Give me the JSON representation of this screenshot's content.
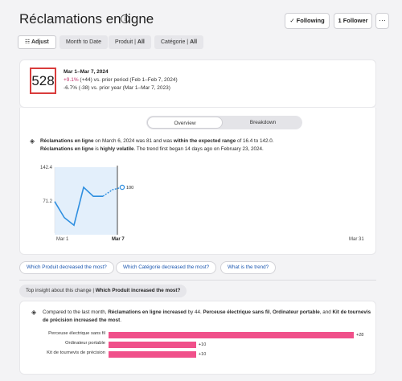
{
  "header": {
    "title": "Réclamations en ligne",
    "info_icon": "info-icon",
    "following_label": "✓  Following",
    "follower_label": "1 Follower",
    "more_label": "···"
  },
  "filters": {
    "adjust_label": "Adjust",
    "date_label": "Month to Date",
    "produit_name": "Produit",
    "produit_value": "All",
    "categorie_name": "Catégorie",
    "categorie_value": "All"
  },
  "summary": {
    "value": "528",
    "period": "Mar 1–Mar 7, 2024",
    "delta_prior_pct": "+9.1%",
    "delta_prior_rest": " (+44) vs. prior period (Feb 1–Feb 7, 2024)",
    "delta_year": "-6.7% (-38) vs. prior year (Mar 1–Mar 7, 2023)"
  },
  "tabs": {
    "overview": "Overview",
    "breakdown": "Breakdown"
  },
  "insight": {
    "t1": "Réclamations en ligne",
    "t2": " on March 6, 2024 was 81 and was ",
    "t3": "within the expected range",
    "t4": " of 16.4 to 142.0.",
    "t5": "Réclamations en ligne",
    "t6": " is ",
    "t7": "highly volatile",
    "t8": ". The trend first began 14 days ago on February 23, 2024."
  },
  "chart_data": {
    "type": "line",
    "x_labels": [
      "Mar 1",
      "Mar 7",
      "Mar 31"
    ],
    "y_ticks": [
      "142.4",
      "71.2"
    ],
    "ylim": [
      0,
      142.4
    ],
    "end_label": "100",
    "series": [
      {
        "values": [
          70,
          36,
          20,
          100,
          81,
          81,
          95,
          100
        ]
      }
    ]
  },
  "questions": [
    "Which Produit decreased the most?",
    "Which Catégorie decreased the most?",
    "What is the trend?"
  ],
  "top_insight": {
    "prefix": "Top insight about this change",
    "question": "Which Produit increased the most?"
  },
  "bottom": {
    "t1": "Compared to the last month, ",
    "t2": "Réclamations en ligne increased",
    "t3": " by 44. ",
    "t4": "Perceuse électrique sans fil",
    "t5": ", ",
    "t6": "Ordinateur portable",
    "t7": ", and ",
    "t8": "Kit de tournevis de précision increased the most",
    "t9": ".",
    "bars": [
      {
        "label": "Perceuse électrique sans fil",
        "value": "+28",
        "num": 28
      },
      {
        "label": "Ordinateur portable",
        "value": "+10",
        "num": 10
      },
      {
        "label": "Kit de tournevis de précision",
        "value": "+10",
        "num": 10
      }
    ],
    "bar_color": "#f0508a"
  },
  "colors": {
    "accent": "#1a56b0",
    "line": "#2f8fe0",
    "highlight": "#d93c3c"
  }
}
